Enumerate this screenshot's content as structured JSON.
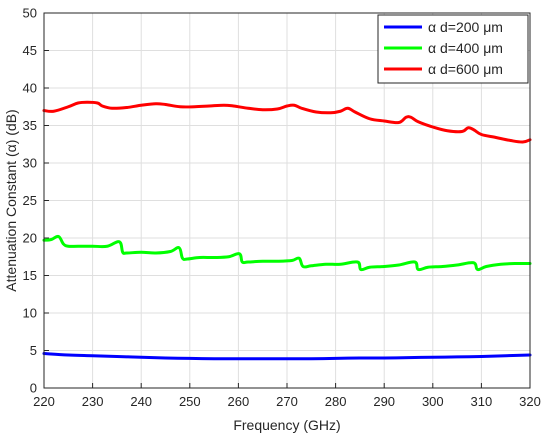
{
  "chart_data": {
    "type": "line",
    "title": "",
    "xlabel": "Frequency (GHz)",
    "ylabel": "Attenuation Constant (α) (dB)",
    "xlim": [
      220,
      320
    ],
    "ylim": [
      0,
      50
    ],
    "xticks": [
      220,
      230,
      240,
      250,
      260,
      270,
      280,
      290,
      300,
      310,
      320
    ],
    "yticks": [
      0,
      5,
      10,
      15,
      20,
      25,
      30,
      35,
      40,
      45,
      50
    ],
    "grid": true,
    "legend_position": "top-right",
    "series": [
      {
        "name": "α d=200 μm",
        "color": "#0000ff",
        "x": [
          220,
          225,
          230,
          235,
          240,
          245,
          250,
          255,
          260,
          265,
          270,
          275,
          280,
          285,
          290,
          295,
          300,
          305,
          310,
          315,
          320
        ],
        "y": [
          4.6,
          4.4,
          4.3,
          4.2,
          4.1,
          4.0,
          3.95,
          3.9,
          3.9,
          3.9,
          3.9,
          3.9,
          3.95,
          4.0,
          4.0,
          4.05,
          4.1,
          4.15,
          4.2,
          4.3,
          4.4
        ]
      },
      {
        "name": "α d=400 μm",
        "color": "#00ff00",
        "x": [
          220,
          221.5,
          223,
          224,
          225,
          227,
          230,
          233,
          235.5,
          236.2,
          237,
          240,
          243,
          246,
          247.8,
          248.5,
          249.5,
          252,
          255,
          258,
          260.2,
          260.8,
          262,
          265,
          268,
          271,
          272.5,
          273.3,
          275,
          278,
          281,
          284.5,
          285.2,
          287,
          290,
          293,
          296.3,
          297,
          299,
          302,
          305,
          308.4,
          309.2,
          311,
          314,
          317,
          320
        ],
        "y": [
          19.7,
          19.8,
          20.2,
          19.2,
          18.9,
          18.9,
          18.9,
          18.9,
          19.5,
          18.1,
          18.0,
          18.1,
          18.0,
          18.2,
          18.7,
          17.3,
          17.2,
          17.4,
          17.4,
          17.5,
          17.9,
          16.8,
          16.8,
          16.9,
          16.9,
          17.0,
          17.3,
          16.2,
          16.3,
          16.5,
          16.5,
          16.8,
          15.8,
          16.1,
          16.2,
          16.4,
          16.8,
          15.8,
          16.1,
          16.2,
          16.4,
          16.7,
          15.8,
          16.2,
          16.5,
          16.6,
          16.6
        ]
      },
      {
        "name": "α d=600 μm",
        "color": "#ff0000",
        "x": [
          220,
          222,
          225,
          227,
          229,
          231,
          232,
          234,
          237,
          240,
          243,
          245,
          248,
          251,
          254,
          257,
          259,
          262,
          265,
          268,
          270,
          271.5,
          273,
          276,
          279,
          281,
          282.5,
          284,
          287,
          290,
          293,
          294.5,
          295.5,
          297,
          300,
          303,
          306,
          307.3,
          308.5,
          310,
          313,
          316,
          318.5,
          320
        ],
        "y": [
          37.0,
          36.9,
          37.5,
          38.0,
          38.1,
          38.0,
          37.6,
          37.3,
          37.4,
          37.7,
          37.9,
          37.8,
          37.5,
          37.5,
          37.6,
          37.7,
          37.6,
          37.3,
          37.1,
          37.2,
          37.6,
          37.7,
          37.3,
          36.8,
          36.7,
          36.9,
          37.3,
          36.8,
          35.9,
          35.6,
          35.4,
          36.1,
          36.1,
          35.5,
          34.8,
          34.3,
          34.2,
          34.7,
          34.4,
          33.8,
          33.4,
          33.0,
          32.8,
          33.1
        ]
      }
    ]
  }
}
